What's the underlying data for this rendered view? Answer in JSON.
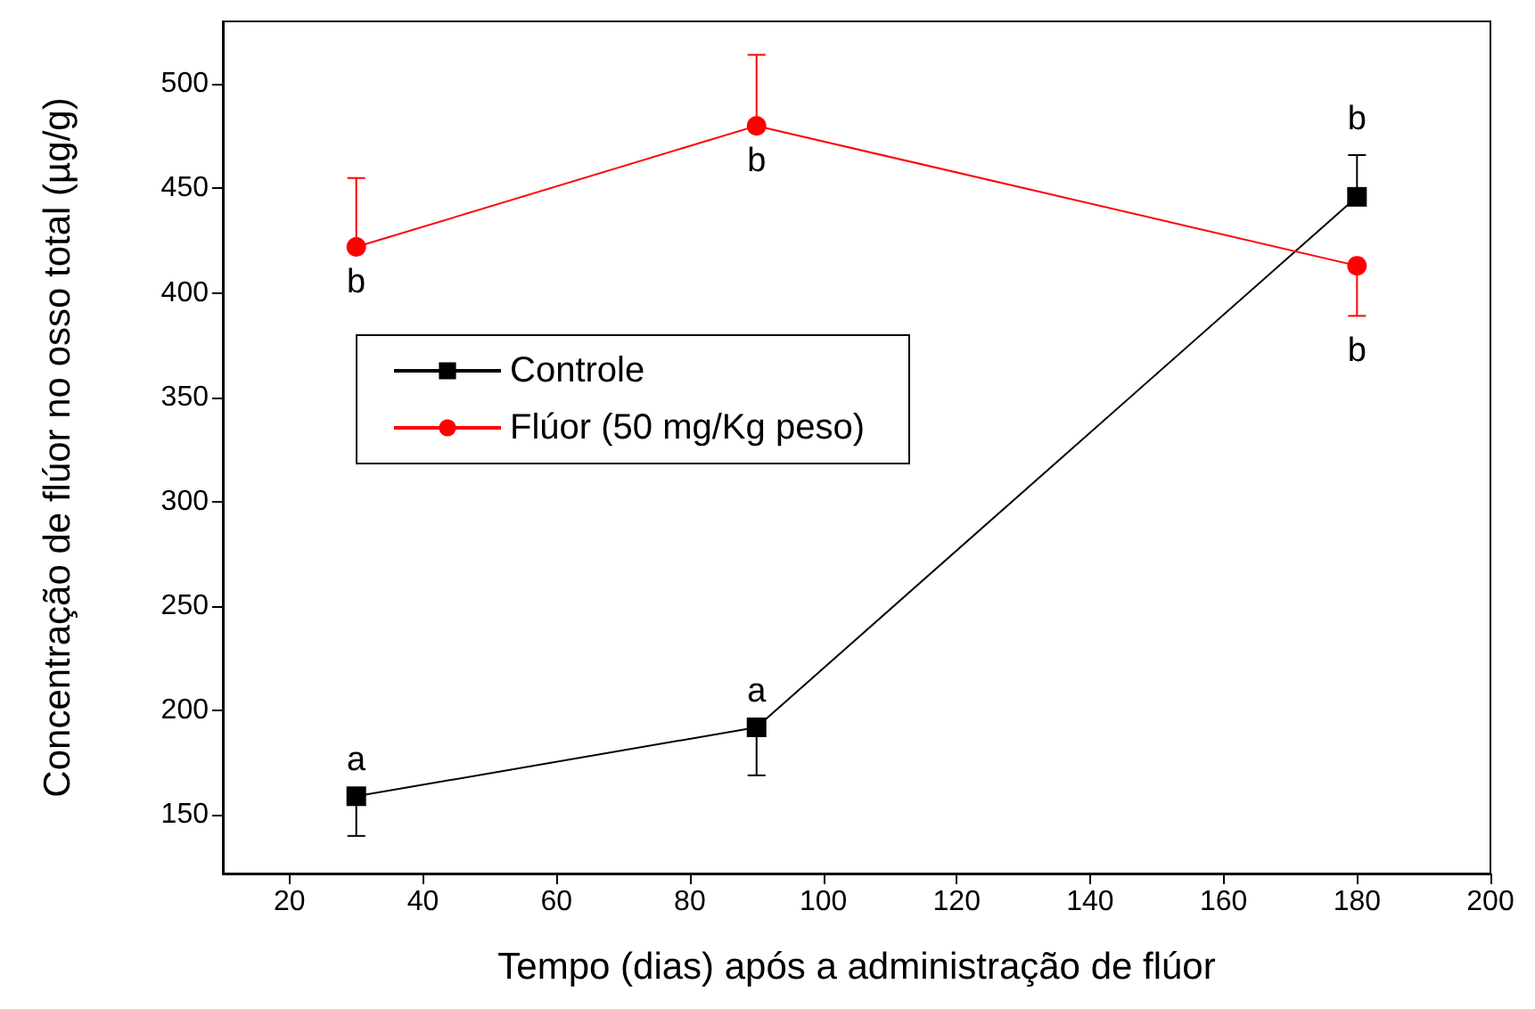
{
  "chart_data": {
    "type": "line",
    "xlabel": "Tempo (dias) após a administração de flúor",
    "ylabel": "Concentração de flúor no osso total (µg/g)",
    "x": [
      30,
      90,
      180
    ],
    "series": [
      {
        "name": "Controle",
        "color": "#000000",
        "marker": "square",
        "values": [
          159,
          192,
          446
        ],
        "errors": [
          [
            140,
            159
          ],
          [
            169,
            192
          ],
          [
            446,
            466
          ]
        ]
      },
      {
        "name": "Flúor (50 mg/Kg peso)",
        "color": "#ff0000",
        "marker": "circle",
        "values": [
          422,
          480,
          413
        ],
        "errors": [
          [
            422,
            455
          ],
          [
            480,
            514
          ],
          [
            389,
            413
          ]
        ]
      }
    ],
    "xlim": [
      10,
      200
    ],
    "xticks": [
      20,
      40,
      60,
      80,
      100,
      120,
      140,
      160,
      180,
      200
    ],
    "ylim": [
      122,
      530
    ],
    "yticks": [
      150,
      200,
      250,
      300,
      350,
      400,
      450,
      500
    ],
    "annotations": [
      {
        "text": "a",
        "x": 30,
        "y": 159
      },
      {
        "text": "a",
        "x": 90,
        "y": 192
      },
      {
        "text": "b",
        "x": 180,
        "y": 466
      },
      {
        "text": "b",
        "x": 90,
        "y": 480
      },
      {
        "text": "b",
        "x": 30,
        "y": 422
      },
      {
        "text": "b",
        "x": 180,
        "y": 389
      }
    ],
    "legend": "center left",
    "grid": false,
    "line_style": "solid"
  }
}
